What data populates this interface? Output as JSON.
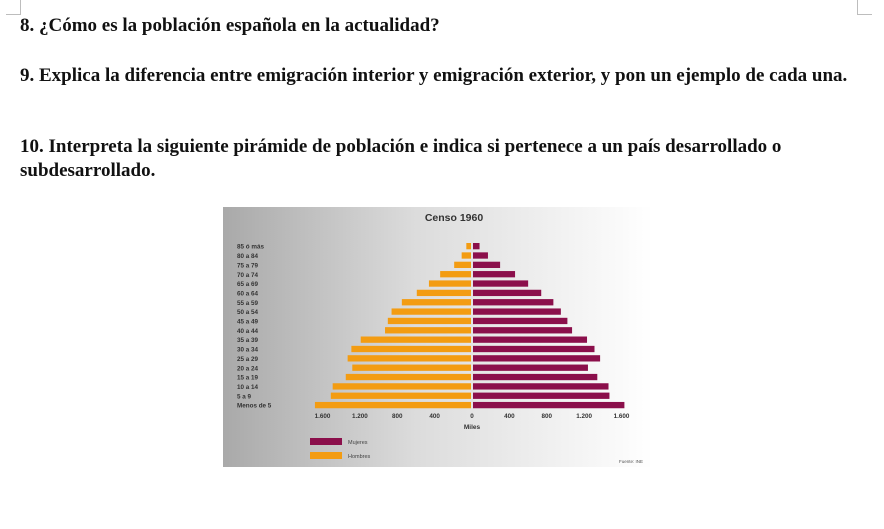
{
  "questions": {
    "q8": "8. ¿Cómo es la población española en la actualidad?",
    "q9": "9. Explica la diferencia entre emigración interior y emigración exterior, y pon un ejemplo de cada una.",
    "q10": "10. Interpreta la siguiente pirámide de población e indica si pertenece a un país desarrollado o subdesarrollado."
  },
  "chart_data": {
    "type": "bar",
    "orientation": "horizontal-pyramid",
    "title": "Censo 1960",
    "xlabel": "Miles",
    "source": "Fuente: INE",
    "categories": [
      "85 ó más",
      "80 a 84",
      "75 a 79",
      "70 a 74",
      "65 a 69",
      "60 a 64",
      "55 a 59",
      "50 a 54",
      "45 a 49",
      "40 a 44",
      "35 a 39",
      "30 a 34",
      "25 a 29",
      "20 a 24",
      "15 a 19",
      "10 a 14",
      "5 a 9",
      "Menos de 5"
    ],
    "x_ticks": [
      "1.600",
      "1.200",
      "800",
      "400",
      "0",
      "400",
      "800",
      "1.200",
      "1.600"
    ],
    "xlim": [
      -1700,
      1700
    ],
    "series": [
      {
        "name": "Mujeres",
        "color": "#8b0f4b",
        "values": [
          70,
          160,
          290,
          450,
          590,
          730,
          860,
          940,
          1010,
          1060,
          1220,
          1300,
          1360,
          1230,
          1330,
          1450,
          1460,
          1620
        ]
      },
      {
        "name": "Hombres",
        "color": "#f39c12",
        "values": [
          50,
          100,
          180,
          330,
          450,
          580,
          740,
          850,
          890,
          920,
          1180,
          1280,
          1320,
          1270,
          1340,
          1480,
          1500,
          1670
        ]
      }
    ],
    "legend_position": "bottom-left",
    "grid": false
  }
}
